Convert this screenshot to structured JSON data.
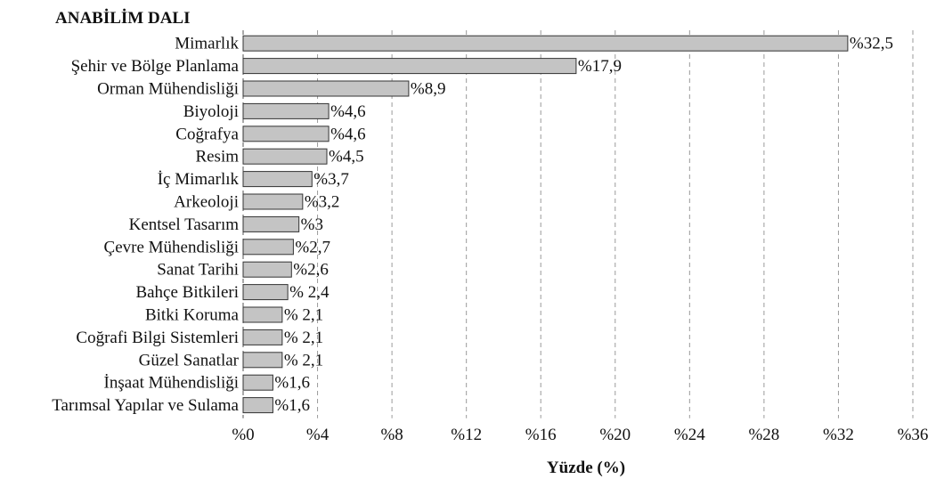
{
  "chart_data": {
    "type": "bar",
    "orientation": "horizontal",
    "ylabel": "ANABİLİM DALI",
    "xlabel": "Yüzde (%)",
    "xlim": [
      0,
      36
    ],
    "xticks": [
      0,
      4,
      8,
      12,
      16,
      20,
      24,
      28,
      32,
      36
    ],
    "xtick_labels": [
      "%0",
      "%4",
      "%8",
      "%12",
      "%16",
      "%20",
      "%24",
      "%28",
      "%32",
      "%36"
    ],
    "grid": "vertical-dashed",
    "categories": [
      "Mimarlık",
      "Şehir ve Bölge Planlama",
      "Orman Mühendisliği",
      "Biyoloji",
      "Coğrafya",
      "Resim",
      "İç Mimarlık",
      "Arkeoloji",
      "Kentsel Tasarım",
      "Çevre Mühendisliği",
      "Sanat Tarihi",
      "Bahçe Bitkileri",
      "Bitki Koruma",
      "Coğrafi Bilgi Sistemleri",
      "Güzel Sanatlar",
      "İnşaat Mühendisliği",
      "Tarımsal Yapılar ve Sulama"
    ],
    "values": [
      32.5,
      17.9,
      8.9,
      4.6,
      4.6,
      4.5,
      3.7,
      3.2,
      3,
      2.7,
      2.6,
      2.4,
      2.1,
      2.1,
      2.1,
      1.6,
      1.6
    ],
    "value_labels": [
      "%32,5",
      "%17,9",
      "%8,9",
      "%4,6",
      "%4,6",
      "%4,5",
      "%3,7",
      "%3,2",
      "%3",
      "%2,7",
      "%2,6",
      "% 2,4",
      "% 2,1",
      "% 2,1",
      "% 2,1",
      "%1,6",
      "%1,6"
    ],
    "colors": {
      "bar_fill": "#c4c4c4",
      "bar_stroke": "#333333",
      "grid": "#9a9a9a",
      "axis": "#555555"
    }
  }
}
